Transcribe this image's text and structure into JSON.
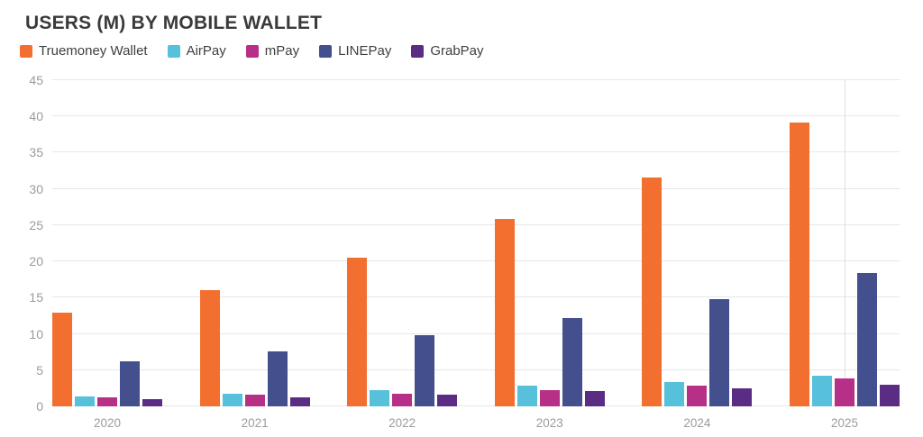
{
  "chart_data": {
    "type": "bar",
    "title": "USERS (M) BY MOBILE WALLET",
    "categories": [
      "2020",
      "2021",
      "2022",
      "2023",
      "2024",
      "2025"
    ],
    "series": [
      {
        "name": "Truemoney Wallet",
        "color": "#F26F30",
        "values": [
          12.9,
          16.1,
          20.5,
          25.9,
          31.6,
          39.1
        ]
      },
      {
        "name": "AirPay",
        "color": "#57C0DA",
        "values": [
          1.4,
          1.8,
          2.3,
          2.8,
          3.4,
          4.2
        ]
      },
      {
        "name": "mPay",
        "color": "#B73088",
        "values": [
          1.3,
          1.6,
          1.8,
          2.3,
          2.9,
          3.8
        ]
      },
      {
        "name": "LINEPay",
        "color": "#44508D",
        "values": [
          6.2,
          7.6,
          9.8,
          12.2,
          14.8,
          18.4
        ]
      },
      {
        "name": "GrabPay",
        "color": "#5B2C83",
        "values": [
          1.0,
          1.2,
          1.6,
          2.1,
          2.5,
          3.0
        ]
      }
    ],
    "ylim": [
      0,
      45
    ],
    "yticks": [
      0,
      5,
      10,
      15,
      20,
      25,
      30,
      35,
      40,
      45
    ],
    "grid": "horizontal",
    "legend_position": "top-left",
    "xlabel": "",
    "ylabel": ""
  }
}
